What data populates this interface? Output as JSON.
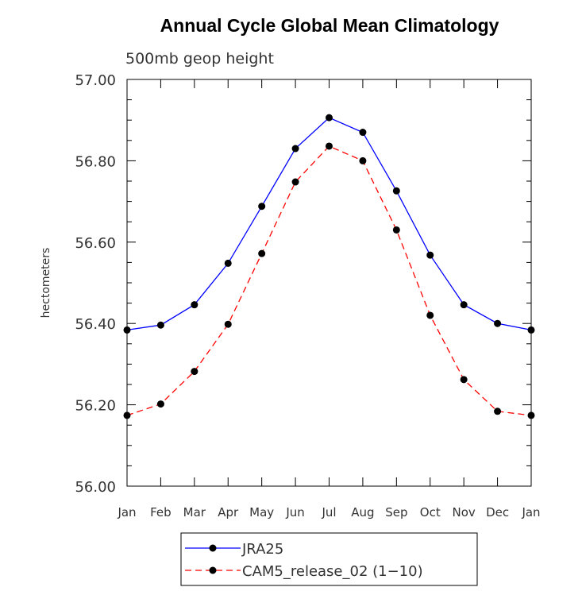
{
  "chart_data": {
    "type": "line",
    "title": "Annual Cycle Global Mean Climatology",
    "subtitle": "500mb geop height",
    "xlabel": "",
    "ylabel": "hectometers",
    "categories": [
      "Jan",
      "Feb",
      "Mar",
      "Apr",
      "May",
      "Jun",
      "Jul",
      "Aug",
      "Sep",
      "Oct",
      "Nov",
      "Dec",
      "Jan"
    ],
    "yticks": [
      "56.00",
      "56.20",
      "56.40",
      "56.60",
      "56.80",
      "57.00"
    ],
    "ylim": [
      56.0,
      57.0
    ],
    "grid": false,
    "legend_position": "bottom",
    "series": [
      {
        "name": "JRA25",
        "color": "#0000ff",
        "dash": "solid",
        "values": [
          56.384,
          56.396,
          56.446,
          56.548,
          56.688,
          56.83,
          56.906,
          56.87,
          56.726,
          56.568,
          56.446,
          56.4,
          56.384
        ]
      },
      {
        "name": "CAM5_release_02 (1−10)",
        "color": "#ff0000",
        "dash": "dashed",
        "values": [
          56.174,
          56.202,
          56.282,
          56.398,
          56.572,
          56.748,
          56.836,
          56.8,
          56.63,
          56.42,
          56.262,
          56.184,
          56.174
        ]
      }
    ]
  }
}
